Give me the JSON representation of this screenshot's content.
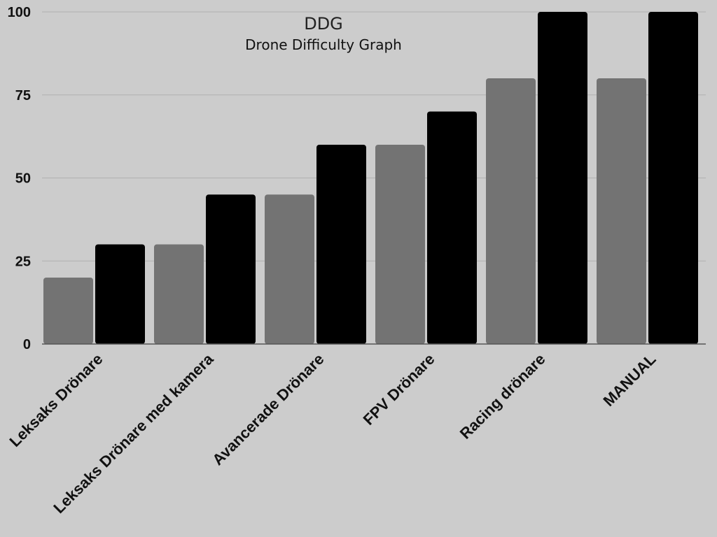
{
  "colors": {
    "background": "#cccccc",
    "series_a": "#737373",
    "series_b": "#000000",
    "grid": "#b0b0b0"
  },
  "chart_data": {
    "type": "bar",
    "title": "DDG",
    "subtitle": "Drone Difficulty Graph",
    "xlabel": "",
    "ylabel": "",
    "categories": [
      "Leksaks Drönare",
      "Leksaks Drönare med kamera",
      "Avancerade Drönare",
      "FPV Drönare",
      "Racing drönare",
      "MANUAL"
    ],
    "series": [
      {
        "values": [
          20,
          30,
          45,
          60,
          80,
          80
        ],
        "color": "#737373"
      },
      {
        "values": [
          30,
          45,
          60,
          70,
          100,
          100
        ],
        "color": "#000000"
      }
    ],
    "ylim": [
      0,
      100
    ],
    "yticks": [
      "0",
      "25",
      "50",
      "75",
      "100"
    ],
    "grid": true,
    "legend": "none"
  }
}
